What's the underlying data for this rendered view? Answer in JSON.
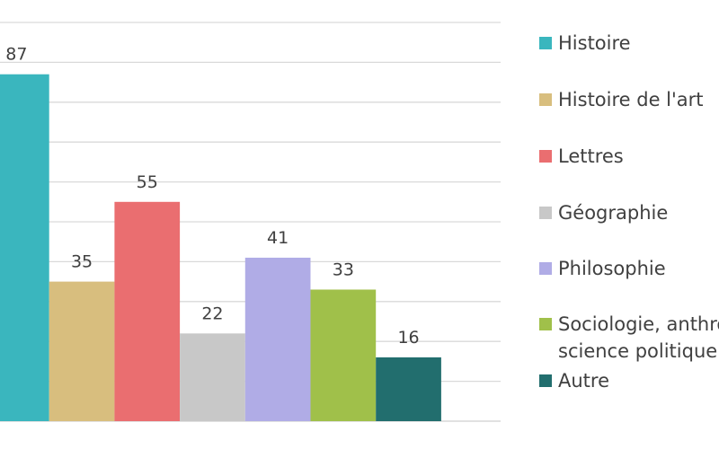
{
  "chart_data": {
    "type": "bar",
    "title": "",
    "xlabel": "",
    "ylabel": "",
    "ylim": [
      0,
      100
    ],
    "grid": true,
    "legend_position": "right",
    "categories": [
      "Histoire",
      "Histoire de l'art",
      "Lettres",
      "Géographie",
      "Philosophie",
      "Sociologie, anthropologie, science politique",
      "Autre"
    ],
    "series": [
      {
        "values": [
          87,
          35,
          55,
          22,
          41,
          33,
          16
        ],
        "colors": [
          "#3AB6BE",
          "#D8BE7E",
          "#EA6E70",
          "#C8C8C8",
          "#B0ACE6",
          "#A0C04A",
          "#226E6E"
        ]
      }
    ],
    "legend": [
      {
        "lines": [
          "Histoire"
        ],
        "color": "#3AB6BE"
      },
      {
        "lines": [
          "Histoire de l'art"
        ],
        "color": "#D8BE7E"
      },
      {
        "lines": [
          "Lettres"
        ],
        "color": "#EA6E70"
      },
      {
        "lines": [
          "Géographie"
        ],
        "color": "#C8C8C8"
      },
      {
        "lines": [
          "Philosophie"
        ],
        "color": "#B0ACE6"
      },
      {
        "lines": [
          "Sociologie, anthropologie,",
          "science politique"
        ],
        "color": "#A0C04A"
      },
      {
        "lines": [
          "Autre"
        ],
        "color": "#226E6E"
      }
    ]
  }
}
